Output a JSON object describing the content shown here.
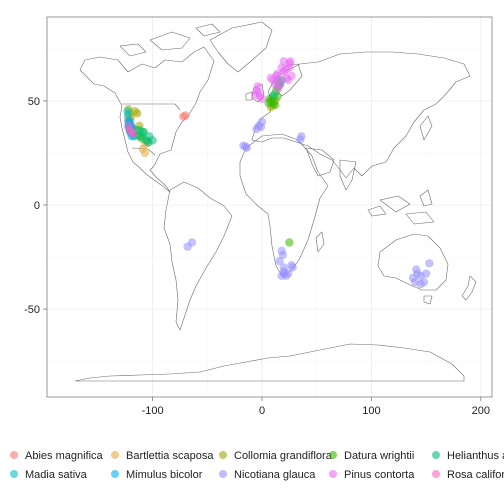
{
  "chart_data": {
    "type": "scatter",
    "title": "",
    "xlabel": "",
    "ylabel": "",
    "xlim": [
      -192,
      205
    ],
    "ylim": [
      -90,
      90
    ],
    "xticks": [
      -100,
      0,
      100,
      200
    ],
    "yticks": [
      -50,
      0,
      50
    ],
    "xtick_labels": [
      "-100",
      "0",
      "100",
      "200"
    ],
    "ytick_labels": [
      "-50",
      "0",
      "50"
    ],
    "grid": true,
    "background": "world-map-outline",
    "legend_position": "bottom",
    "series": [
      {
        "name": "Abies magnifica",
        "color": "#F8766D",
        "points": [
          [
            -121,
            40.5
          ],
          [
            -122.5,
            41
          ],
          [
            -120,
            38.5
          ],
          [
            -119.5,
            37.5
          ],
          [
            -118.5,
            36
          ],
          [
            -70,
            43
          ],
          [
            -72,
            42.5
          ],
          [
            -121,
            39
          ]
        ]
      },
      {
        "name": "Bartlettia scaposa",
        "color": "#E6AB45",
        "points": [
          [
            -109,
            27
          ],
          [
            -107,
            25
          ],
          [
            -106.5,
            29.5
          ],
          [
            -105,
            31
          ],
          [
            -104,
            30
          ]
        ]
      },
      {
        "name": "Collomia grandiflora",
        "color": "#A3A500",
        "points": [
          [
            -122,
            46
          ],
          [
            -121,
            44
          ],
          [
            -120,
            42
          ],
          [
            -116,
            45
          ],
          [
            -114,
            44
          ],
          [
            -112,
            38
          ],
          [
            8,
            47
          ],
          [
            10,
            48
          ],
          [
            12,
            50
          ]
        ]
      },
      {
        "name": "Datura wrightii",
        "color": "#39B600",
        "points": [
          [
            -120,
            36
          ],
          [
            -118,
            34.5
          ],
          [
            -116,
            33.5
          ],
          [
            -112,
            33
          ],
          [
            -110,
            32
          ],
          [
            -109,
            35
          ],
          [
            -115,
            36
          ],
          [
            7,
            51
          ],
          [
            8,
            50
          ],
          [
            10,
            49
          ],
          [
            12,
            48
          ],
          [
            14,
            52
          ],
          [
            13,
            55
          ],
          [
            15,
            57
          ],
          [
            16,
            59
          ],
          [
            10,
            52
          ],
          [
            6,
            49
          ],
          [
            25,
            -18
          ]
        ]
      },
      {
        "name": "Helianthus a",
        "color": "#00BF7D",
        "points": [
          [
            -110,
            33
          ],
          [
            -108,
            35
          ],
          [
            -106,
            31
          ],
          [
            -104,
            30
          ],
          [
            -112,
            36
          ],
          [
            -103,
            33
          ],
          [
            -100,
            31
          ],
          [
            16,
            58
          ],
          [
            18,
            60
          ],
          [
            11,
            53
          ]
        ]
      },
      {
        "name": "Madia sativa",
        "color": "#00BFC4",
        "points": [
          [
            -123,
            45
          ],
          [
            -122.5,
            43
          ],
          [
            -122,
            40
          ],
          [
            -121.5,
            38
          ],
          [
            -121,
            36
          ],
          [
            -120.5,
            35
          ],
          [
            -119,
            34
          ],
          [
            -117,
            33
          ],
          [
            -118.5,
            35.5
          ],
          [
            -122,
            37.5
          ],
          [
            -120,
            37
          ]
        ]
      },
      {
        "name": "Mimulus bicolor",
        "color": "#00B0F6",
        "points": [
          [
            -121.5,
            39
          ],
          [
            -121,
            37
          ],
          [
            -120.5,
            38
          ],
          [
            -120,
            36.5
          ],
          [
            -119.5,
            36
          ],
          [
            -119,
            37.5
          ],
          [
            -120,
            35
          ],
          [
            -118.5,
            34.5
          ],
          [
            -121,
            40
          ],
          [
            -122,
            38.5
          ],
          [
            -119,
            33
          ]
        ]
      },
      {
        "name": "Nicotiana glauca",
        "color": "#9590FF",
        "points": [
          [
            -15,
            28
          ],
          [
            -17,
            28.5
          ],
          [
            -14,
            27.5
          ],
          [
            -3,
            38
          ],
          [
            -1,
            37.5
          ],
          [
            -5,
            36.5
          ],
          [
            0,
            40
          ],
          [
            35,
            31.5
          ],
          [
            36,
            33
          ],
          [
            -64,
            -18
          ],
          [
            -68,
            -20
          ],
          [
            18,
            -34
          ],
          [
            20,
            -33
          ],
          [
            22,
            -34
          ],
          [
            24,
            -33
          ],
          [
            18,
            -22
          ],
          [
            19,
            -24
          ],
          [
            27,
            -29
          ],
          [
            28,
            -30
          ],
          [
            16,
            -27
          ],
          [
            138,
            -35
          ],
          [
            140,
            -37
          ],
          [
            145,
            -38
          ],
          [
            150,
            -33
          ],
          [
            145,
            -34
          ],
          [
            148,
            -37
          ],
          [
            141,
            -31
          ],
          [
            142,
            -33
          ],
          [
            153,
            -28
          ],
          [
            20,
            -30
          ],
          [
            20,
            -32
          ]
        ]
      },
      {
        "name": "Pinus contorta",
        "color": "#E76BF3",
        "points": [
          [
            -6,
            53
          ],
          [
            -5,
            55
          ],
          [
            -3,
            54
          ],
          [
            -4,
            57
          ],
          [
            -2,
            52
          ],
          [
            0,
            51
          ],
          [
            15,
            60
          ],
          [
            13,
            62
          ],
          [
            14,
            63
          ],
          [
            18,
            66
          ],
          [
            20,
            64
          ],
          [
            22,
            65
          ],
          [
            25,
            66
          ],
          [
            25,
            68
          ],
          [
            27,
            62
          ],
          [
            22,
            61
          ],
          [
            24,
            60
          ],
          [
            12,
            58
          ],
          [
            17,
            58
          ],
          [
            15,
            56
          ],
          [
            10,
            60
          ],
          [
            8,
            61
          ],
          [
            20,
            69
          ],
          [
            26,
            69
          ]
        ]
      },
      {
        "name": "Rosa califor",
        "color": "#FF62BC",
        "points": [
          [
            -122,
            38
          ],
          [
            -121,
            36
          ],
          [
            -119,
            35
          ],
          [
            -118,
            34
          ]
        ]
      }
    ]
  }
}
